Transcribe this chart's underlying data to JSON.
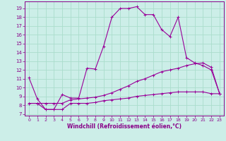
{
  "background_color": "#cceee8",
  "grid_color": "#aaddcc",
  "line_color": "#990099",
  "xlabel": "Windchill (Refroidissement éolien,°C)",
  "xlabel_color": "#880088",
  "xlim": [
    -0.5,
    23.5
  ],
  "ylim": [
    6.8,
    19.8
  ],
  "xticks": [
    0,
    1,
    2,
    3,
    4,
    5,
    6,
    7,
    8,
    9,
    10,
    11,
    12,
    13,
    14,
    15,
    16,
    17,
    18,
    19,
    20,
    21,
    22,
    23
  ],
  "yticks": [
    7,
    8,
    9,
    10,
    11,
    12,
    13,
    14,
    15,
    16,
    17,
    18,
    19
  ],
  "curve1_x": [
    0,
    1,
    2,
    3,
    4,
    5,
    6,
    7,
    8,
    9,
    10,
    11,
    12,
    13,
    14,
    15,
    16,
    17,
    18,
    19,
    20,
    21,
    22,
    23
  ],
  "curve1_y": [
    11.1,
    8.7,
    7.5,
    7.5,
    9.2,
    8.8,
    8.8,
    12.2,
    12.1,
    14.7,
    18.0,
    19.0,
    19.0,
    19.2,
    18.3,
    18.3,
    16.6,
    15.8,
    18.0,
    13.4,
    12.8,
    12.5,
    12.0,
    9.3
  ],
  "curve2_x": [
    0,
    1,
    2,
    3,
    4,
    5,
    6,
    7,
    8,
    9,
    10,
    11,
    12,
    13,
    14,
    15,
    16,
    17,
    18,
    19,
    20,
    21,
    22,
    23
  ],
  "curve2_y": [
    8.2,
    8.2,
    8.2,
    8.2,
    8.2,
    8.6,
    8.7,
    8.8,
    8.9,
    9.1,
    9.4,
    9.8,
    10.2,
    10.7,
    11.0,
    11.4,
    11.8,
    12.0,
    12.2,
    12.5,
    12.7,
    12.8,
    12.3,
    9.3
  ],
  "curve3_x": [
    0,
    1,
    2,
    3,
    4,
    5,
    6,
    7,
    8,
    9,
    10,
    11,
    12,
    13,
    14,
    15,
    16,
    17,
    18,
    19,
    20,
    21,
    22,
    23
  ],
  "curve3_y": [
    8.2,
    8.2,
    7.5,
    7.5,
    7.5,
    8.2,
    8.2,
    8.2,
    8.3,
    8.5,
    8.6,
    8.7,
    8.8,
    9.0,
    9.1,
    9.2,
    9.3,
    9.4,
    9.5,
    9.5,
    9.5,
    9.5,
    9.3,
    9.3
  ]
}
